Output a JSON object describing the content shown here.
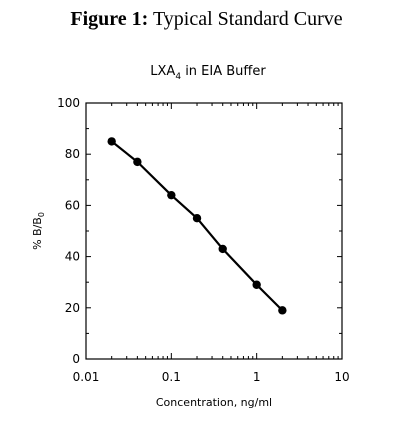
{
  "figure": {
    "label": "Figure 1:",
    "caption": "Typical Standard Curve"
  },
  "chart_data": {
    "type": "line",
    "title": "LXA",
    "title_subscript": "4",
    "title_suffix": " in EIA Buffer",
    "xlabel": "Concentration, ng/ml",
    "ylabel": "% B/B",
    "ylabel_subscript": "0",
    "xscale": "log",
    "xlim": [
      0.01,
      10
    ],
    "ylim": [
      0,
      100
    ],
    "xticks": [
      "0.01",
      "0.1",
      "1",
      "10"
    ],
    "yticks": [
      "0",
      "20",
      "40",
      "60",
      "80",
      "100"
    ],
    "grid": false,
    "series": [
      {
        "x": [
          0.02,
          0.04,
          0.1,
          0.2,
          0.4,
          1,
          2
        ],
        "y": [
          85,
          77,
          64,
          55,
          43,
          29,
          19
        ]
      }
    ],
    "colors": {
      "line": "#000000",
      "marker": "#000000"
    }
  }
}
